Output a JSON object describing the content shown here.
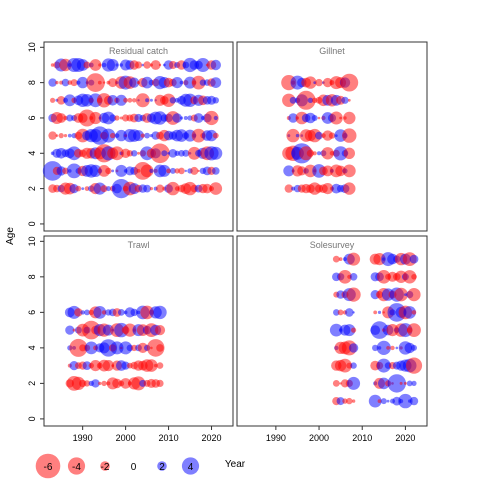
{
  "chart_data": {
    "type": "scatter",
    "subtype": "bubble residual plot",
    "xlabel": "Year",
    "ylabel": "Age",
    "xlim": [
      1981,
      2025
    ],
    "ylim": [
      -0.4,
      10.3
    ],
    "x_ticks": [
      1990,
      2000,
      2010,
      2020
    ],
    "y_ticks": [
      0,
      2,
      4,
      6,
      8,
      10
    ],
    "colors": {
      "positive": "#0000ff",
      "negative": "#ff0000",
      "panel_border": "#333333"
    },
    "bubble_alpha": 0.5,
    "panels": [
      {
        "name": "Residual catch",
        "years": [
          1983,
          2021
        ],
        "ages": [
          2,
          3,
          4,
          5,
          6,
          7,
          8,
          9
        ],
        "seed": 11
      },
      {
        "name": "Gillnet",
        "years": [
          1993,
          2007
        ],
        "ages": [
          2,
          3,
          4,
          5,
          6,
          7,
          8
        ],
        "seed": 23
      },
      {
        "name": "Trawl",
        "years": [
          1987,
          2008
        ],
        "ages": [
          2,
          3,
          4,
          5,
          6
        ],
        "seed": 37
      },
      {
        "name": "Solesurvey",
        "years": [
          2004,
          2022
        ],
        "ages": [
          1,
          2,
          3,
          4,
          5,
          6,
          7,
          8,
          9
        ],
        "gap": [
          2009,
          2012
        ],
        "seed": 51
      }
    ],
    "legend": {
      "entries": [
        {
          "label": "-6",
          "value": -6
        },
        {
          "label": "-4",
          "value": -4
        },
        {
          "label": "-2",
          "value": -2
        },
        {
          "label": "0",
          "value": 0
        },
        {
          "label": "2",
          "value": 2
        },
        {
          "label": "4",
          "value": 4
        }
      ]
    }
  }
}
